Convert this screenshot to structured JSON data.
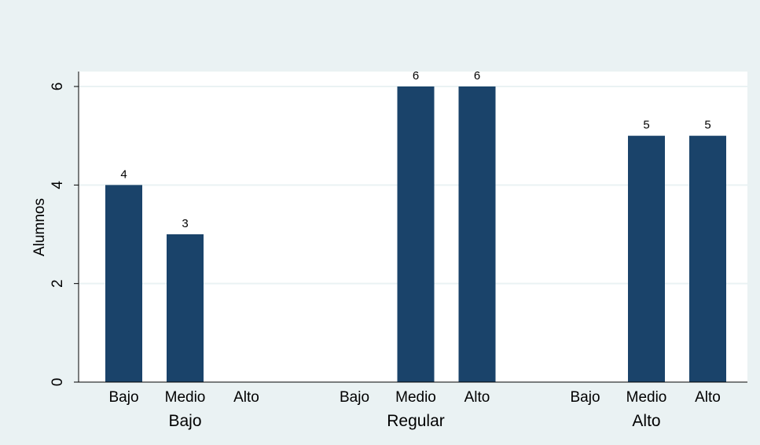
{
  "chart_data": {
    "type": "bar",
    "ylabel": "Alumnos",
    "ylim": [
      0,
      6
    ],
    "yticks": [
      0,
      2,
      4,
      6
    ],
    "grid": true,
    "groups": [
      {
        "label": "Bajo",
        "bars": [
          {
            "label": "Bajo",
            "value": 4
          },
          {
            "label": "Medio",
            "value": 3
          },
          {
            "label": "Alto",
            "value": 0
          }
        ]
      },
      {
        "label": "Regular",
        "bars": [
          {
            "label": "Bajo",
            "value": 0
          },
          {
            "label": "Medio",
            "value": 6
          },
          {
            "label": "Alto",
            "value": 6
          }
        ]
      },
      {
        "label": "Alto",
        "bars": [
          {
            "label": "Bajo",
            "value": 0
          },
          {
            "label": "Medio",
            "value": 5
          },
          {
            "label": "Alto",
            "value": 5
          }
        ]
      }
    ],
    "colors": {
      "bar": "#1a436a",
      "background": "#eaf2f3",
      "plot_background": "#ffffff",
      "gridline": "#eaf2f3"
    }
  }
}
